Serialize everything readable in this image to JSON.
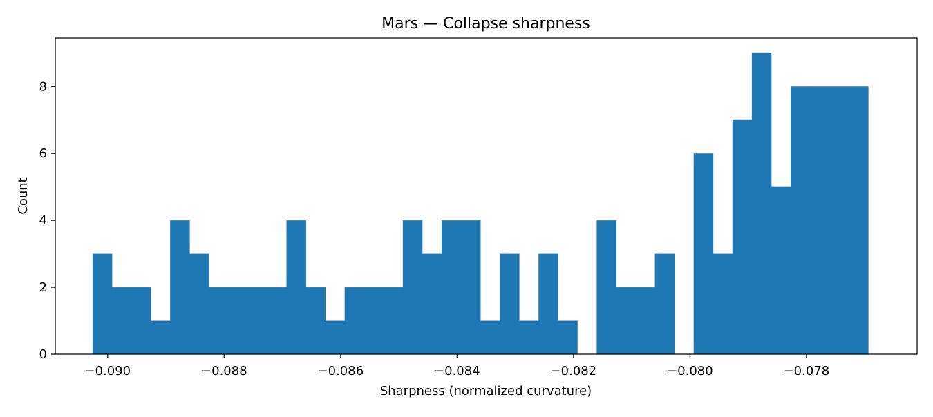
{
  "chart_data": {
    "type": "bar",
    "title": "Mars — Collapse sharpness",
    "xlabel": "Sharpness (normalized curvature)",
    "ylabel": "Count",
    "xlim": [
      -0.0909,
      -0.0761
    ],
    "ylim": [
      0,
      9.45
    ],
    "x_ticks": [
      -0.09,
      -0.088,
      -0.086,
      -0.084,
      -0.082,
      -0.08,
      -0.078
    ],
    "x_tick_labels": [
      "−0.090",
      "−0.088",
      "−0.086",
      "−0.084",
      "−0.082",
      "−0.080",
      "−0.078"
    ],
    "y_ticks": [
      0,
      2,
      4,
      6,
      8
    ],
    "y_tick_labels": [
      "0",
      "2",
      "4",
      "6",
      "8"
    ],
    "grid": false,
    "bar_color": "#1f77b4",
    "bin_start": -0.09026,
    "bin_width": 0.000333,
    "counts": [
      3,
      2,
      2,
      1,
      4,
      3,
      2,
      2,
      2,
      2,
      4,
      2,
      1,
      2,
      2,
      2,
      4,
      3,
      4,
      4,
      1,
      3,
      1,
      3,
      1,
      0,
      4,
      2,
      2,
      3,
      0,
      6,
      3,
      7,
      9,
      5,
      8,
      8,
      8,
      8
    ]
  }
}
